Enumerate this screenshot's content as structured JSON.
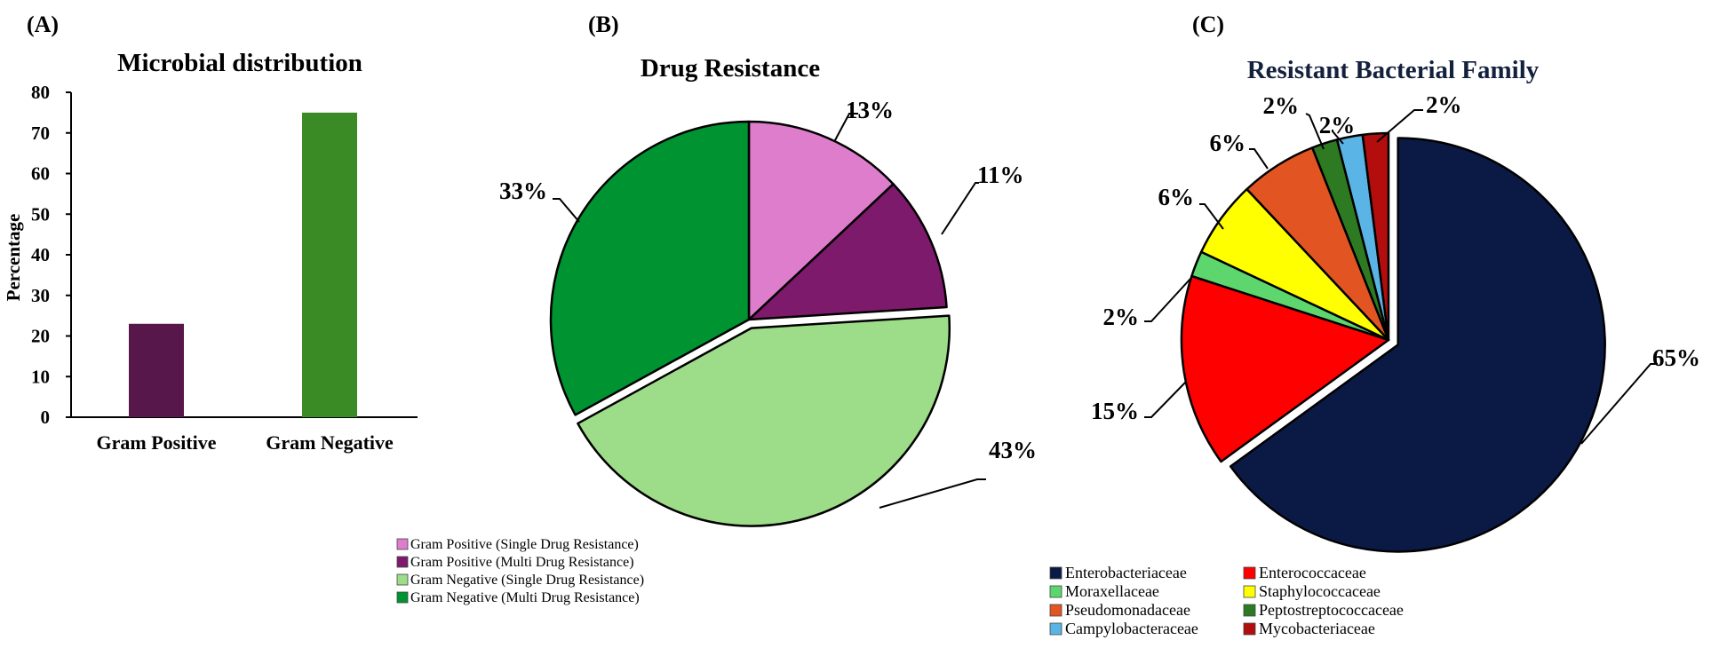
{
  "panels": {
    "a_label": "(A)",
    "b_label": "(B)",
    "c_label": "(C)"
  },
  "chart_data": [
    {
      "type": "bar",
      "title": "Microbial distribution",
      "ylabel": "Percentage",
      "xlabel": "",
      "categories": [
        "Gram Positive",
        "Gram Negative"
      ],
      "values": [
        23,
        75
      ],
      "colors": [
        "#58174a",
        "#3a8a25"
      ],
      "ylim": [
        0,
        80
      ],
      "yticks": [
        0,
        10,
        20,
        30,
        40,
        50,
        60,
        70,
        80
      ],
      "grid": false
    },
    {
      "type": "pie",
      "title": "Drug Resistance",
      "slices": [
        {
          "label": "Gram Positive (Single Drug Resistance)",
          "value": 13,
          "display": "13%",
          "color": "#dd7dcc"
        },
        {
          "label": "Gram Positive (Multi Drug Resistance)",
          "value": 11,
          "display": "11%",
          "color": "#7d1a6c"
        },
        {
          "label": "Gram Negative (Single Drug Resistance)",
          "value": 43,
          "display": "43%",
          "color": "#9ddc88"
        },
        {
          "label": "Gram Negative (Multi Drug Resistance)",
          "value": 33,
          "display": "33%",
          "color": "#009332"
        }
      ],
      "legend_position": "bottom"
    },
    {
      "type": "pie",
      "title": "Resistant Bacterial Family",
      "title_color": "#14213d",
      "slices": [
        {
          "label": "Enterobacteriaceae",
          "value": 65,
          "display": "65%",
          "color": "#0b1a45"
        },
        {
          "label": "Enterococcaceae",
          "value": 15,
          "display": "15%",
          "color": "#ff0000"
        },
        {
          "label": "Moraxellaceae",
          "value": 2,
          "display": "2%",
          "color": "#5dd66e"
        },
        {
          "label": "Staphylococcaceae",
          "value": 6,
          "display": "6%",
          "color": "#ffff00"
        },
        {
          "label": "Pseudomonadaceae",
          "value": 6,
          "display": "6%",
          "color": "#e25522"
        },
        {
          "label": "Peptostreptococcaceae",
          "value": 2,
          "display": "2%",
          "color": "#2e7a22"
        },
        {
          "label": "Campylobacteraceae",
          "value": 2,
          "display": "2%",
          "color": "#5ab4e6"
        },
        {
          "label": "Mycobacteriaceae",
          "value": 2,
          "display": "2%",
          "color": "#b30d0d"
        }
      ],
      "legend_position": "bottom"
    }
  ]
}
